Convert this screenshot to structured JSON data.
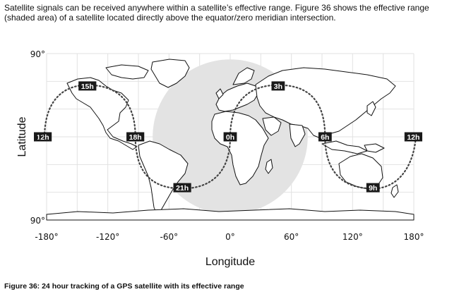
{
  "intro_text": "Satellite signals can be received anywhere within a satellite’s effective range. Figure 36 shows the effective range (shaded area) of a satellite located directly above the equator/zero meridian intersection.",
  "caption": "Figure 36: 24 hour tracking of a GPS satellite with its effective range",
  "chart_data": {
    "type": "scatter",
    "xlabel": "Longitude",
    "ylabel": "Latitude",
    "xlim": [
      -180,
      180
    ],
    "ylim": [
      -90,
      90
    ],
    "x_ticks": [
      {
        "value": -180,
        "label": "-180°"
      },
      {
        "value": -120,
        "label": "-120°"
      },
      {
        "value": -60,
        "label": "-60°"
      },
      {
        "value": 0,
        "label": "0°"
      },
      {
        "value": 60,
        "label": "60°"
      },
      {
        "value": 120,
        "label": "120°"
      },
      {
        "value": 180,
        "label": "180°"
      }
    ],
    "y_ticks": [
      {
        "value": 90,
        "label": "90°"
      },
      {
        "value": 0,
        "label": "0°"
      },
      {
        "value": -90,
        "label": "90°"
      }
    ],
    "effective_range": {
      "center_lon": 0,
      "center_lat": 0,
      "radius_deg": 76,
      "color": "#e3e3e3"
    },
    "hour_marks": [
      {
        "label": "0h",
        "lon": 0,
        "lat": 0
      },
      {
        "label": "3h",
        "lon": 47,
        "lat": 55
      },
      {
        "label": "6h",
        "lon": 93,
        "lat": 0
      },
      {
        "label": "9h",
        "lon": 140,
        "lat": -55
      },
      {
        "label": "12h",
        "lon": 186,
        "lat": 0
      },
      {
        "label": "12h",
        "lon": -186,
        "lat": 0
      },
      {
        "label": "15h",
        "lon": -140,
        "lat": 55
      },
      {
        "label": "18h",
        "lon": -93,
        "lat": 0
      },
      {
        "label": "21h",
        "lon": -47,
        "lat": -55
      }
    ]
  }
}
